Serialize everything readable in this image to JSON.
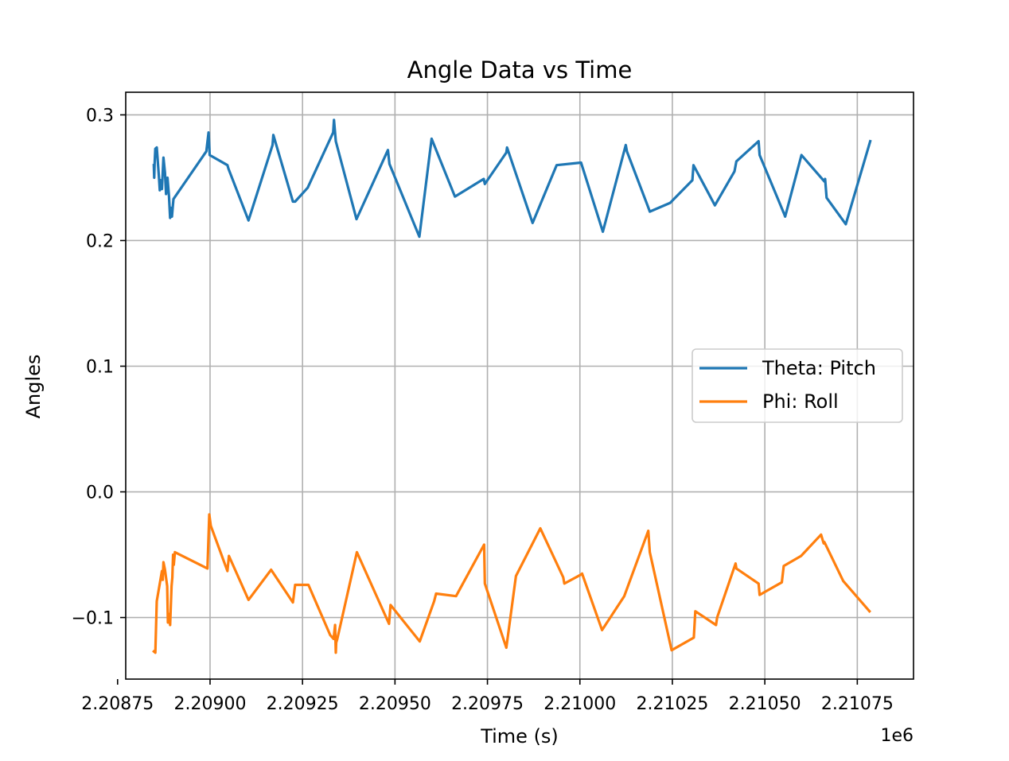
{
  "chart_data": {
    "type": "line",
    "title": "Angle Data vs Time",
    "xlabel": "Time (s)",
    "ylabel": "Angles",
    "x_offset_label": "1e6",
    "xlim": [
      2.208772,
      2.210902
    ],
    "ylim": [
      -0.149,
      0.318
    ],
    "x_ticks": [
      2.20875,
      2.209,
      2.20925,
      2.2095,
      2.20975,
      2.21,
      2.21025,
      2.2105,
      2.21075
    ],
    "x_tick_labels": [
      "2.20875",
      "2.20900",
      "2.20925",
      "2.20950",
      "2.20975",
      "2.21000",
      "2.21025",
      "2.21050",
      "2.21075"
    ],
    "y_ticks": [
      -0.1,
      0.0,
      0.1,
      0.2,
      0.3
    ],
    "y_tick_labels": [
      "−0.1",
      "0.0",
      "0.1",
      "0.2",
      "0.3"
    ],
    "grid": true,
    "legend_position": "center-right",
    "series": [
      {
        "name": "Theta: Pitch",
        "color": "#1f77b4",
        "x": [
          2.208848,
          2.208849,
          2.20885,
          2.208852,
          2.208856,
          2.208859,
          2.208862,
          2.208864,
          2.208866,
          2.20887,
          2.208874,
          2.208878,
          2.208881,
          2.208885,
          2.208889,
          2.208892,
          2.208894,
          2.208897,
          2.208899,
          2.208901,
          2.20899,
          2.208996,
          2.208999,
          2.209047,
          2.20905,
          2.209104,
          2.209169,
          2.209171,
          2.209224,
          2.20923,
          2.209264,
          2.209333,
          2.209335,
          2.20934,
          2.209396,
          2.209481,
          2.209485,
          2.209566,
          2.209599,
          2.209662,
          2.20974,
          2.209743,
          2.209801,
          2.209803,
          2.209872,
          2.209937,
          2.210003,
          2.210062,
          2.210124,
          2.210127,
          2.210184,
          2.210189,
          2.210244,
          2.210304,
          2.210307,
          2.210365,
          2.210418,
          2.210423,
          2.210483,
          2.210486,
          2.210551,
          2.210555,
          2.210599,
          2.210661,
          2.210663,
          2.210667,
          2.210719,
          2.210785
        ],
        "y": [
          0.26,
          0.25,
          0.261,
          0.273,
          0.274,
          0.262,
          0.25,
          0.24,
          0.248,
          0.241,
          0.266,
          0.254,
          0.237,
          0.25,
          0.235,
          0.218,
          0.226,
          0.219,
          0.226,
          0.233,
          0.271,
          0.286,
          0.268,
          0.26,
          0.257,
          0.216,
          0.276,
          0.284,
          0.231,
          0.231,
          0.242,
          0.286,
          0.296,
          0.279,
          0.217,
          0.272,
          0.261,
          0.203,
          0.281,
          0.235,
          0.249,
          0.245,
          0.27,
          0.274,
          0.214,
          0.26,
          0.262,
          0.207,
          0.276,
          0.271,
          0.227,
          0.223,
          0.23,
          0.248,
          0.26,
          0.228,
          0.255,
          0.263,
          0.279,
          0.268,
          0.222,
          0.219,
          0.268,
          0.247,
          0.249,
          0.234,
          0.213,
          0.279
        ]
      },
      {
        "name": "Phi: Roll",
        "color": "#ff7f0e",
        "x": [
          2.208848,
          2.208852,
          2.208856,
          2.20887,
          2.208872,
          2.208874,
          2.208878,
          2.208884,
          2.208886,
          2.208888,
          2.20889,
          2.208892,
          2.208896,
          2.208898,
          2.2089,
          2.208902,
          2.208905,
          2.208993,
          2.208998,
          2.209002,
          2.209047,
          2.209051,
          2.209104,
          2.209165,
          2.209224,
          2.20923,
          2.209266,
          2.209325,
          2.209334,
          2.209338,
          2.20934,
          2.209341,
          2.209344,
          2.209397,
          2.209484,
          2.209488,
          2.209567,
          2.209606,
          2.209611,
          2.209665,
          2.209741,
          2.209743,
          2.209801,
          2.209827,
          2.209893,
          2.209955,
          2.209958,
          2.210002,
          2.210006,
          2.21006,
          2.21012,
          2.210185,
          2.210189,
          2.210248,
          2.210308,
          2.210312,
          2.210368,
          2.210371,
          2.210421,
          2.210423,
          2.210483,
          2.210486,
          2.210546,
          2.210551,
          2.210598,
          2.210652,
          2.210659,
          2.210661,
          2.210712,
          2.210783
        ],
        "y": [
          -0.127,
          -0.128,
          -0.087,
          -0.063,
          -0.07,
          -0.056,
          -0.062,
          -0.075,
          -0.104,
          -0.097,
          -0.1,
          -0.106,
          -0.075,
          -0.068,
          -0.05,
          -0.058,
          -0.048,
          -0.061,
          -0.018,
          -0.027,
          -0.063,
          -0.051,
          -0.086,
          -0.062,
          -0.088,
          -0.074,
          -0.074,
          -0.114,
          -0.117,
          -0.106,
          -0.128,
          -0.12,
          -0.117,
          -0.048,
          -0.105,
          -0.09,
          -0.119,
          -0.087,
          -0.081,
          -0.083,
          -0.042,
          -0.073,
          -0.124,
          -0.067,
          -0.029,
          -0.068,
          -0.073,
          -0.066,
          -0.065,
          -0.11,
          -0.083,
          -0.031,
          -0.048,
          -0.126,
          -0.116,
          -0.095,
          -0.106,
          -0.1,
          -0.057,
          -0.061,
          -0.073,
          -0.082,
          -0.072,
          -0.059,
          -0.051,
          -0.034,
          -0.041,
          -0.04,
          -0.071,
          -0.095
        ]
      }
    ]
  }
}
